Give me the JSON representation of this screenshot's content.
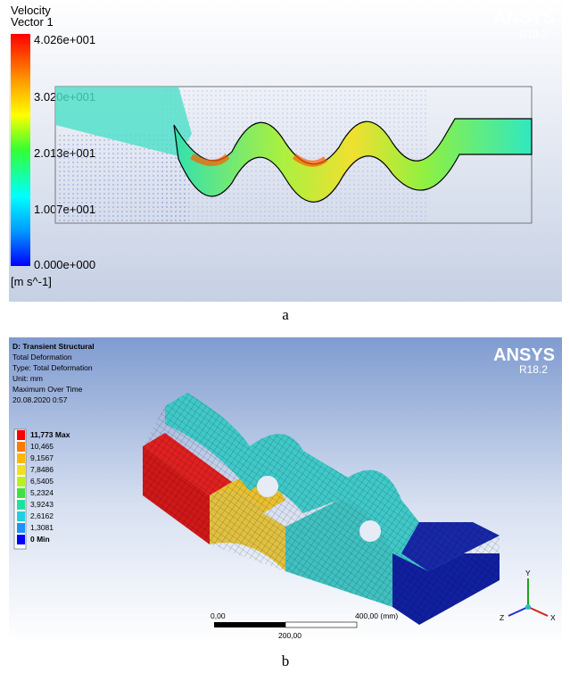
{
  "panel_a": {
    "caption": "a",
    "legend": {
      "title": "Velocity",
      "subtitle": "Vector 1",
      "labels": [
        "4.026e+001",
        "3.020e+001",
        "2.013e+001",
        "1.007e+001",
        "0.000e+000"
      ],
      "unit": "[m s^-1]"
    },
    "logo": {
      "name": "ANSYS",
      "version": "R18.2"
    }
  },
  "panel_b": {
    "caption": "b",
    "info": [
      "D: Transient Structural",
      "Total Deformation",
      "Type: Total Deformation",
      "Unit: mm",
      "Maximum Over Time",
      "20.08.2020 0:57"
    ],
    "legend": {
      "labels": [
        "11,773 Max",
        "10,465",
        "9,1567",
        "7,8486",
        "6,5405",
        "5,2324",
        "3,9243",
        "2,6162",
        "1,3081",
        "0 Min"
      ]
    },
    "scale_bar": {
      "start": "0,00",
      "end": "400,00 (mm)",
      "middle": "200,00"
    },
    "triad": {
      "y": "Y",
      "z": "Z",
      "x": "X"
    },
    "logo": {
      "name": "ANSYS",
      "version": "R18.2"
    }
  }
}
